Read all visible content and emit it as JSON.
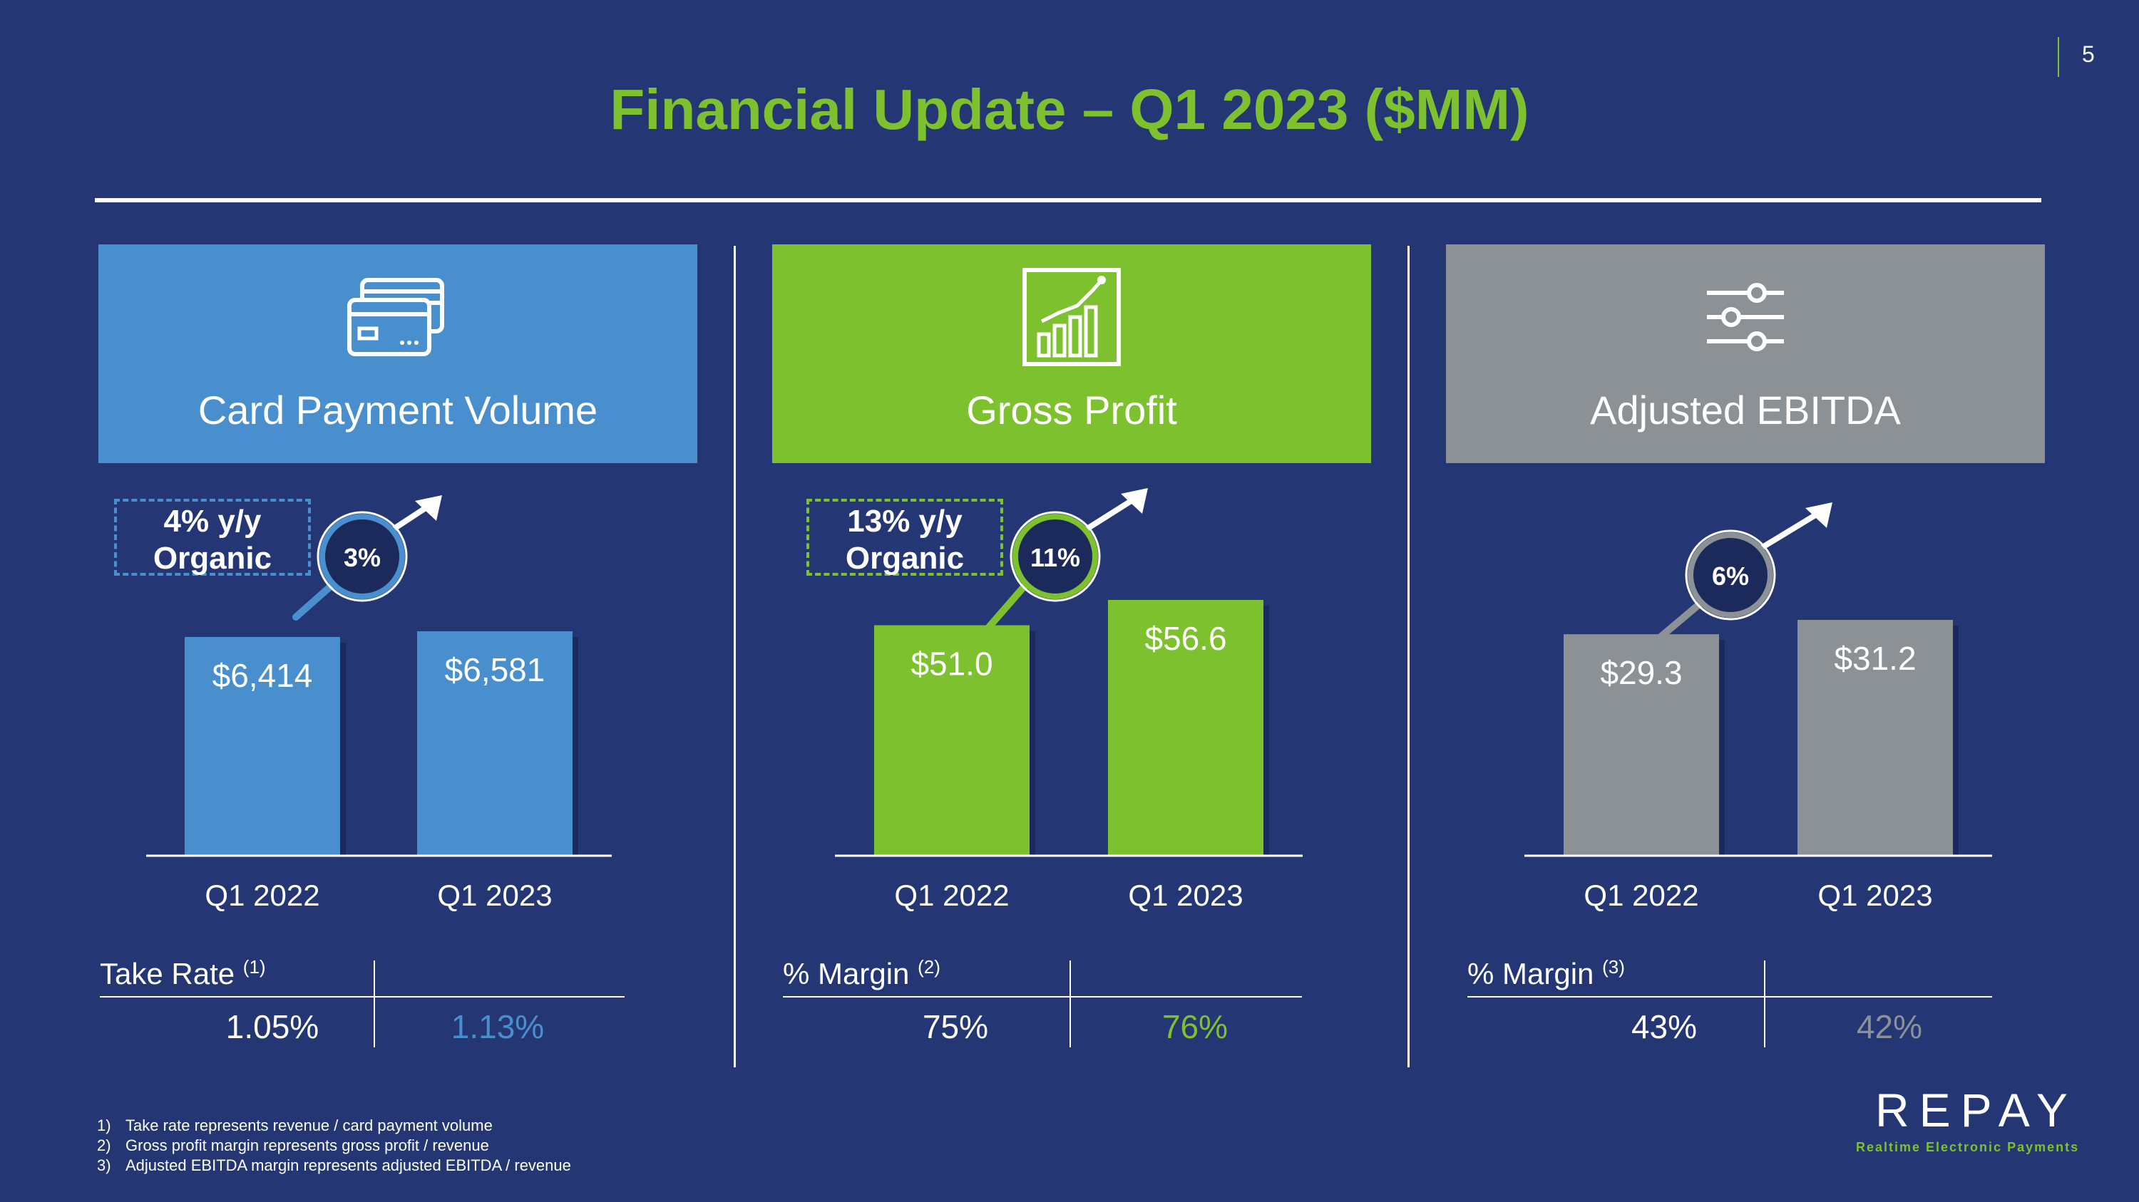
{
  "slide_number": "5",
  "title": "Financial Update – Q1 2023 ($MM)",
  "colors": {
    "background": "#243673",
    "blue": "#4a8fcd",
    "green": "#7dc12e",
    "gray": "#8c9196",
    "navy": "#1b2a5a"
  },
  "panels": [
    {
      "header": "Card Payment Volume",
      "icon": "credit-card-icon",
      "organic_callout": "4% y/y\nOrganic",
      "growth": "3%",
      "metric_label": "Take Rate",
      "metric_footnote": "(1)",
      "metric_values": [
        "1.05%",
        "1.13%"
      ]
    },
    {
      "header": "Gross Profit",
      "icon": "bar-chart-trend-icon",
      "organic_callout": "13% y/y\nOrganic",
      "growth": "11%",
      "metric_label": "% Margin",
      "metric_footnote": "(2)",
      "metric_values": [
        "75%",
        "76%"
      ]
    },
    {
      "header": "Adjusted EBITDA",
      "icon": "sliders-icon",
      "organic_callout": "",
      "growth": "6%",
      "metric_label": "% Margin",
      "metric_footnote": "(3)",
      "metric_values": [
        "43%",
        "42%"
      ]
    }
  ],
  "chart_data": [
    {
      "type": "bar",
      "title": "Card Payment Volume",
      "categories": [
        "Q1 2022",
        "Q1 2023"
      ],
      "values": [
        6414,
        6581
      ],
      "value_labels": [
        "$6,414",
        "$6,581"
      ],
      "grid": false
    },
    {
      "type": "bar",
      "title": "Gross Profit",
      "categories": [
        "Q1 2022",
        "Q1 2023"
      ],
      "values": [
        51.0,
        56.6
      ],
      "value_labels": [
        "$51.0",
        "$56.6"
      ],
      "grid": false
    },
    {
      "type": "bar",
      "title": "Adjusted EBITDA",
      "categories": [
        "Q1 2022",
        "Q1 2023"
      ],
      "values": [
        29.3,
        31.2
      ],
      "value_labels": [
        "$29.3",
        "$31.2"
      ],
      "grid": false
    }
  ],
  "footnotes": [
    {
      "num": "1)",
      "text": "Take rate represents revenue / card payment volume"
    },
    {
      "num": "2)",
      "text": "Gross profit margin represents gross profit / revenue"
    },
    {
      "num": "3)",
      "text": "Adjusted EBITDA margin represents adjusted EBITDA / revenue"
    }
  ],
  "logo": {
    "wordmark": "REPAY",
    "tagline": "Realtime Electronic Payments"
  }
}
